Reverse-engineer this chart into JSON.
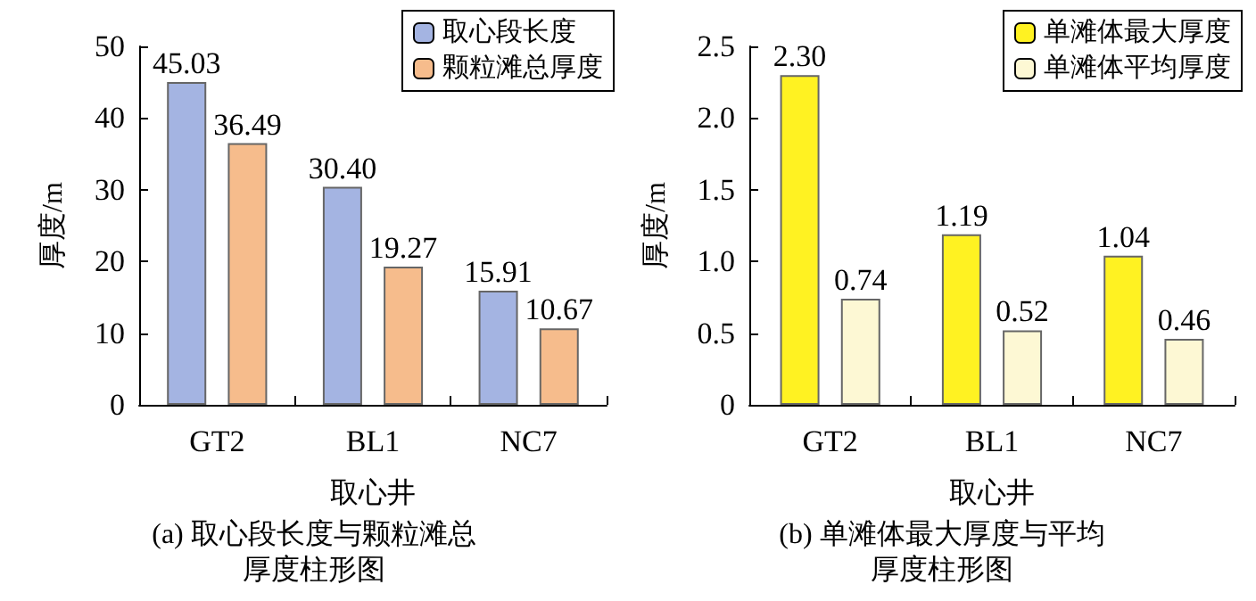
{
  "chart_data": [
    {
      "type": "bar",
      "title": "(a) 取心段长度与颗粒滩总厚度柱形图",
      "xlabel": "取心井",
      "ylabel": "厚度/m",
      "categories": [
        "GT2",
        "BL1",
        "NC7"
      ],
      "series": [
        {
          "name": "取心段长度",
          "color": "#a4b4e2",
          "values": [
            45.03,
            30.4,
            15.91
          ]
        },
        {
          "name": "颗粒滩总厚度",
          "color": "#f6bc8c",
          "values": [
            36.49,
            19.27,
            10.67
          ]
        }
      ],
      "value_labels": [
        [
          "45.03",
          "30.40",
          "15.91"
        ],
        [
          "36.49",
          "19.27",
          "10.67"
        ]
      ],
      "ylim": [
        0,
        50
      ],
      "yticks": [
        0,
        10,
        20,
        30,
        40,
        50
      ],
      "grid": false,
      "legend": "top right"
    },
    {
      "type": "bar",
      "title": "(b) 单滩体最大厚度与平均厚度柱形图",
      "xlabel": "取心井",
      "ylabel": "厚度/m",
      "categories": [
        "GT2",
        "BL1",
        "NC7"
      ],
      "series": [
        {
          "name": "单滩体最大厚度",
          "color": "#fff222",
          "values": [
            2.3,
            1.19,
            1.04
          ]
        },
        {
          "name": "单滩体平均厚度",
          "color": "#fdf8d4",
          "values": [
            0.74,
            0.52,
            0.46
          ]
        }
      ],
      "value_labels": [
        [
          "2.30",
          "1.19",
          "1.04"
        ],
        [
          "0.74",
          "0.52",
          "0.46"
        ]
      ],
      "ylim": [
        0,
        2.5
      ],
      "yticks": [
        0,
        {
          "value": 0.5,
          "label": "0.5"
        },
        {
          "value": 1,
          "label": "1.0"
        },
        {
          "value": 1.5,
          "label": "1.5"
        },
        {
          "value": 2,
          "label": "2.0"
        },
        {
          "value": 2.5,
          "label": "2.5"
        }
      ],
      "grid": false,
      "legend": "top right"
    }
  ]
}
